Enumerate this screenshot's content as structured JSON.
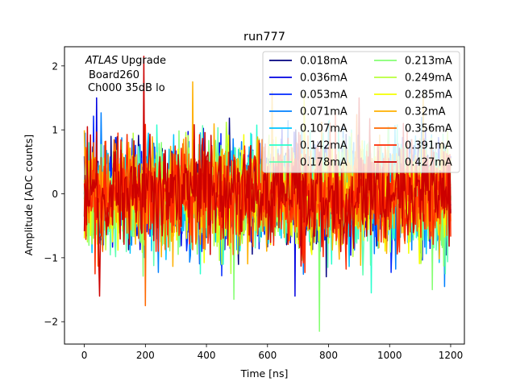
{
  "chart_data": {
    "type": "line",
    "title": "run777",
    "xlabel": "Time [ns]",
    "ylabel": "Amplitude [ADC counts]",
    "xlim": [
      -65,
      1245
    ],
    "ylim": [
      -2.35,
      2.3
    ],
    "xticks": [
      0,
      200,
      400,
      600,
      800,
      1000,
      1200
    ],
    "xtick_labels": [
      "0",
      "200",
      "400",
      "600",
      "800",
      "1000",
      "1200"
    ],
    "yticks": [
      -2,
      -1,
      0,
      1,
      2
    ],
    "ytick_labels": [
      "−2",
      "−1",
      "0",
      "1",
      "2"
    ],
    "grid": false,
    "legend_position": "upper right",
    "legend_columns": 2,
    "annotation": {
      "italic_prefix": "ATLAS",
      "line1_rest": " Upgrade",
      "line2": "Board260",
      "line3": "Ch000 35dB lo"
    },
    "x_range": [
      0,
      1200
    ],
    "n_samples": 481,
    "noise_std": 0.4,
    "series": [
      {
        "name": "0.018mA",
        "color": "#00007f"
      },
      {
        "name": "0.036mA",
        "color": "#0000e1"
      },
      {
        "name": "0.053mA",
        "color": "#0028ff"
      },
      {
        "name": "0.071mA",
        "color": "#0080ff"
      },
      {
        "name": "0.107mA",
        "color": "#00c4ff"
      },
      {
        "name": "0.142mA",
        "color": "#29ffce"
      },
      {
        "name": "0.178mA",
        "color": "#5dffb2"
      },
      {
        "name": "0.213mA",
        "color": "#85ff72"
      },
      {
        "name": "0.249mA",
        "color": "#b8ff3c"
      },
      {
        "name": "0.285mA",
        "color": "#f4ff00"
      },
      {
        "name": "0.32mA",
        "color": "#ffb000"
      },
      {
        "name": "0.356mA",
        "color": "#ff6800"
      },
      {
        "name": "0.391mA",
        "color": "#ff2a00"
      },
      {
        "name": "0.427mA",
        "color": "#cc0000"
      }
    ],
    "highlights": [
      {
        "x": 40,
        "y": 1.5,
        "series": 1
      },
      {
        "x": 50,
        "y": -1.6,
        "series": 13
      },
      {
        "x": 195,
        "y": 2.15,
        "series": 13
      },
      {
        "x": 200,
        "y": -1.75,
        "series": 11
      },
      {
        "x": 355,
        "y": 1.75,
        "series": 10
      },
      {
        "x": 615,
        "y": 1.6,
        "series": 10
      },
      {
        "x": 690,
        "y": -1.6,
        "series": 1
      },
      {
        "x": 770,
        "y": -2.15,
        "series": 7
      },
      {
        "x": 490,
        "y": -1.65,
        "series": 7
      },
      {
        "x": 720,
        "y": 1.55,
        "series": 9
      },
      {
        "x": 900,
        "y": 1.5,
        "series": 13
      },
      {
        "x": 1110,
        "y": 1.6,
        "series": 10
      },
      {
        "x": 1140,
        "y": -1.5,
        "series": 7
      },
      {
        "x": 1180,
        "y": -1.45,
        "series": 3
      },
      {
        "x": 940,
        "y": -1.55,
        "series": 5
      }
    ]
  }
}
